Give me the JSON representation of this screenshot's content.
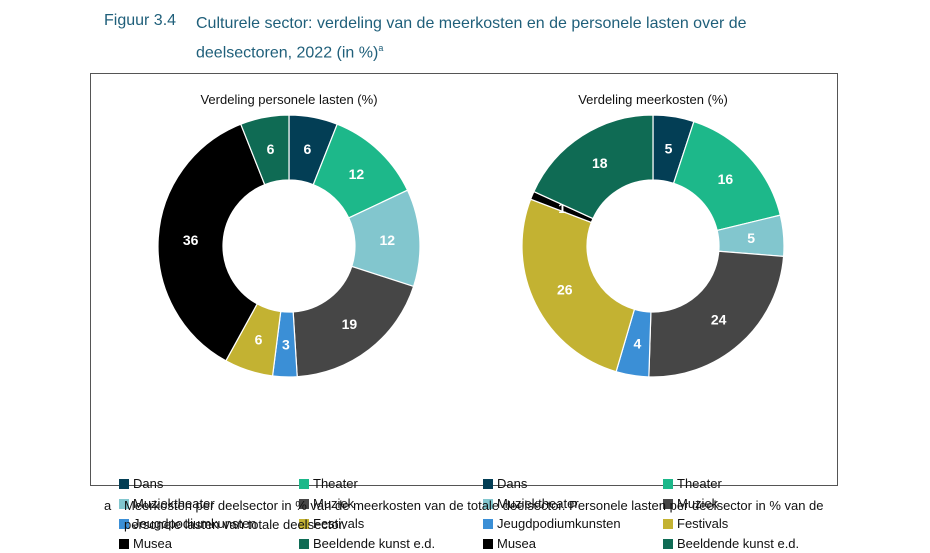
{
  "figure": {
    "number": "Figuur 3.4",
    "title": "Culturele sector: verdeling van de meerkosten en de personele lasten over de deelsectoren, 2022 (in %)",
    "title_superscript": "a"
  },
  "footnote": {
    "marker": "a",
    "text": "Meerkosten per deelsector in % van de meerkosten van de totale deelsector. Personele lasten per deelsector in % van de personele lasten van totale deelsector."
  },
  "colors": {
    "Dans": "#033e55",
    "Theater": "#1db88a",
    "Muziektheater": "#82c6ce",
    "Muziek": "#464646",
    "Jeugdpodiumkunsten": "#3b8fd6",
    "Festivals": "#c3b232",
    "Musea": "#000000",
    "Beeldende kunst e.d.": "#0f6b54"
  },
  "chart_data": [
    {
      "type": "pie",
      "donut": true,
      "title": "Verdeling personele lasten (%)",
      "categories": [
        "Dans",
        "Theater",
        "Muziektheater",
        "Muziek",
        "Jeugdpodiumkunsten",
        "Festivals",
        "Musea",
        "Beeldende kunst e.d."
      ],
      "values": [
        6,
        12,
        12,
        19,
        3,
        6,
        36,
        6
      ],
      "legend": [
        "Dans",
        "Theater",
        "Muziektheater",
        "Muziek",
        "Jeugdpodiumkunsten",
        "Festivals",
        "Musea",
        "Beeldende kunst e.d."
      ],
      "legend_position": "bottom"
    },
    {
      "type": "pie",
      "donut": true,
      "title": "Verdeling meerkosten (%)",
      "categories": [
        "Dans",
        "Theater",
        "Muziektheater",
        "Muziek",
        "Jeugdpodiumkunsten",
        "Festivals",
        "Musea",
        "Beeldende kunst e.d."
      ],
      "values": [
        5,
        16,
        5,
        24,
        4,
        26,
        1,
        18
      ],
      "legend": [
        "Dans",
        "Theater",
        "Muziektheater",
        "Muziek",
        "Jeugdpodiumkunsten",
        "Festivals",
        "Musea",
        "Beeldende kunst e.d."
      ],
      "legend_position": "bottom"
    }
  ]
}
